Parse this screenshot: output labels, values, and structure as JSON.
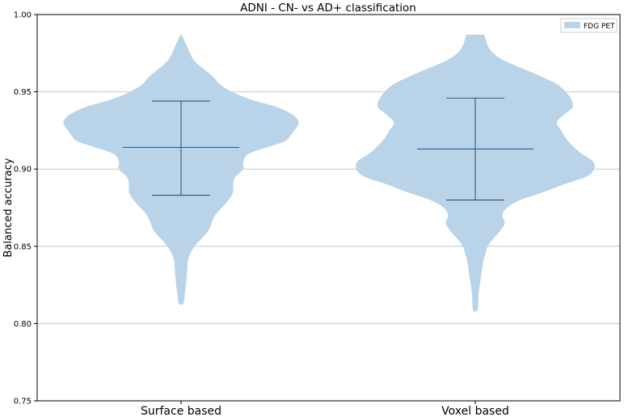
{
  "chart_data": {
    "type": "violin",
    "title": "ADNI - CN- vs AD+ classification",
    "xlabel": "",
    "ylabel": "Balanced accuracy",
    "ylim": [
      0.75,
      1.0
    ],
    "yticks": [
      "0.75",
      "0.80",
      "0.85",
      "0.90",
      "0.95",
      "1.00"
    ],
    "grid": "horizontal",
    "legend": {
      "position": "top-right",
      "entries": [
        "FDG PET"
      ]
    },
    "colors": {
      "fill": "#b9d4e9",
      "median_line": "#1f63a8",
      "whisker_line": "#1a2a3a",
      "grid": "#c8c8c8"
    },
    "categories": [
      "Surface based",
      "Voxel based"
    ],
    "series": [
      {
        "name": "FDG PET",
        "violins": [
          {
            "category": "Surface based",
            "min": 0.883,
            "max": 0.944,
            "mean": 0.914,
            "extent": [
              0.813,
              0.987
            ],
            "density": [
              [
                0.987,
                0.005
              ],
              [
                0.98,
                0.05
              ],
              [
                0.97,
                0.12
              ],
              [
                0.96,
                0.28
              ],
              [
                0.955,
                0.34
              ],
              [
                0.95,
                0.45
              ],
              [
                0.945,
                0.62
              ],
              [
                0.94,
                0.85
              ],
              [
                0.935,
                0.99
              ],
              [
                0.93,
                1.04
              ],
              [
                0.925,
                1.0
              ],
              [
                0.922,
                0.97
              ],
              [
                0.918,
                0.92
              ],
              [
                0.915,
                0.8
              ],
              [
                0.91,
                0.6
              ],
              [
                0.905,
                0.55
              ],
              [
                0.9,
                0.55
              ],
              [
                0.895,
                0.48
              ],
              [
                0.89,
                0.46
              ],
              [
                0.885,
                0.46
              ],
              [
                0.88,
                0.42
              ],
              [
                0.875,
                0.36
              ],
              [
                0.87,
                0.3
              ],
              [
                0.865,
                0.27
              ],
              [
                0.86,
                0.24
              ],
              [
                0.855,
                0.18
              ],
              [
                0.85,
                0.12
              ],
              [
                0.845,
                0.08
              ],
              [
                0.84,
                0.06
              ],
              [
                0.83,
                0.05
              ],
              [
                0.82,
                0.035
              ],
              [
                0.813,
                0.02
              ]
            ]
          },
          {
            "category": "Voxel based",
            "min": 0.88,
            "max": 0.946,
            "mean": 0.913,
            "extent": [
              0.809,
              0.987
            ],
            "density": [
              [
                0.987,
                0.08
              ],
              [
                0.98,
                0.11
              ],
              [
                0.975,
                0.16
              ],
              [
                0.97,
                0.26
              ],
              [
                0.965,
                0.42
              ],
              [
                0.96,
                0.58
              ],
              [
                0.955,
                0.72
              ],
              [
                0.95,
                0.8
              ],
              [
                0.945,
                0.85
              ],
              [
                0.94,
                0.86
              ],
              [
                0.935,
                0.78
              ],
              [
                0.93,
                0.72
              ],
              [
                0.925,
                0.76
              ],
              [
                0.92,
                0.8
              ],
              [
                0.915,
                0.86
              ],
              [
                0.91,
                0.94
              ],
              [
                0.905,
                1.04
              ],
              [
                0.9,
                1.05
              ],
              [
                0.895,
                0.98
              ],
              [
                0.89,
                0.78
              ],
              [
                0.885,
                0.6
              ],
              [
                0.88,
                0.4
              ],
              [
                0.875,
                0.28
              ],
              [
                0.87,
                0.24
              ],
              [
                0.865,
                0.26
              ],
              [
                0.86,
                0.22
              ],
              [
                0.855,
                0.16
              ],
              [
                0.85,
                0.11
              ],
              [
                0.845,
                0.09
              ],
              [
                0.84,
                0.07
              ],
              [
                0.83,
                0.05
              ],
              [
                0.82,
                0.03
              ],
              [
                0.809,
                0.02
              ]
            ]
          }
        ]
      }
    ]
  }
}
